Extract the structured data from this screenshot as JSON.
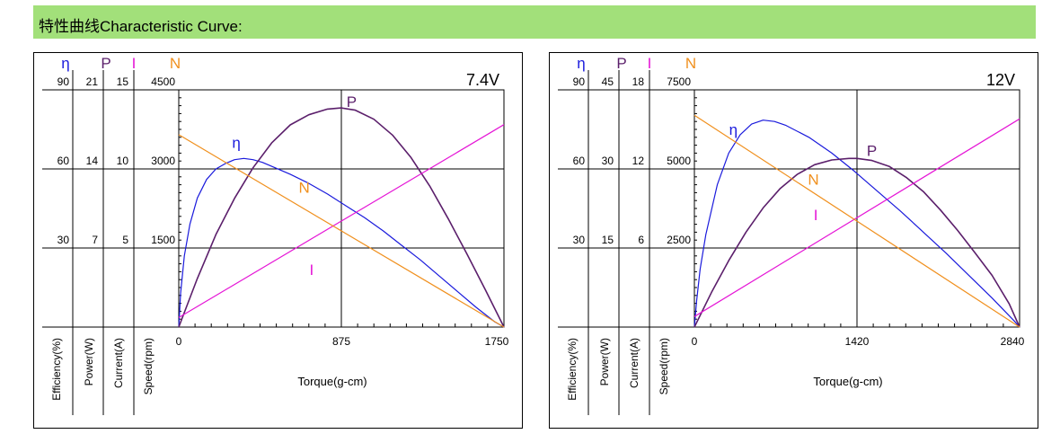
{
  "header": {
    "title": "特性曲线Characteristic Curve:"
  },
  "colors": {
    "eta": "#1a1adc",
    "P": "#5b1f6b",
    "I": "#e516d6",
    "N": "#f0901e",
    "header_bg": "#a2e07a"
  },
  "chart_data": [
    {
      "type": "line",
      "voltage_label": "7.4V",
      "xlabel": "Torque(g-cm)",
      "x_ticks": [
        "0",
        "875",
        "1750"
      ],
      "xlim": [
        0,
        1750
      ],
      "axes": [
        {
          "symbol": "η",
          "label": "Efficiency(%)",
          "ticks": [
            "90",
            "60",
            "30"
          ],
          "max": 90
        },
        {
          "symbol": "P",
          "label": "Power(W)",
          "ticks": [
            "21",
            "14",
            "7"
          ],
          "max": 21
        },
        {
          "symbol": "I",
          "label": "Current(A)",
          "ticks": [
            "15",
            "10",
            "5"
          ],
          "max": 15
        },
        {
          "symbol": "N",
          "label": "Speed(rpm)",
          "ticks": [
            "4500",
            "3000",
            "1500"
          ],
          "max": 4500
        }
      ],
      "series": [
        {
          "name": "η",
          "axis": 0,
          "x": [
            0,
            10,
            30,
            60,
            100,
            150,
            200,
            250,
            300,
            350,
            400,
            450,
            500,
            600,
            700,
            800,
            900,
            1000,
            1100,
            1200,
            1300,
            1400,
            1500,
            1600,
            1700,
            1750
          ],
          "values": [
            0,
            13,
            27,
            39,
            49,
            56,
            60,
            62,
            63.5,
            64,
            63.5,
            62.5,
            61,
            58,
            54.5,
            50.5,
            46,
            41.5,
            36.5,
            31,
            25.5,
            19.5,
            13.5,
            7.5,
            2,
            0
          ]
        },
        {
          "name": "P",
          "axis": 1,
          "x": [
            0,
            100,
            200,
            300,
            400,
            500,
            600,
            700,
            800,
            875,
            950,
            1050,
            1150,
            1250,
            1350,
            1450,
            1550,
            1650,
            1750
          ],
          "values": [
            0,
            4.3,
            8.2,
            11.4,
            14.1,
            16.3,
            17.9,
            18.8,
            19.3,
            19.4,
            19.2,
            18.4,
            17.0,
            15.0,
            12.5,
            9.6,
            6.5,
            3.3,
            0
          ]
        },
        {
          "name": "I",
          "axis": 2,
          "x": [
            0,
            1750
          ],
          "values": [
            0.6,
            12.8
          ]
        },
        {
          "name": "N",
          "axis": 3,
          "x": [
            0,
            1750
          ],
          "values": [
            3650,
            0
          ]
        }
      ],
      "curve_labels": [
        {
          "name": "η",
          "x": 310,
          "y": 68
        },
        {
          "name": "P",
          "x": 930,
          "y": 19.5
        },
        {
          "name": "N",
          "x": 675,
          "y": 2550
        },
        {
          "name": "I",
          "x": 715,
          "y": 3.3
        }
      ]
    },
    {
      "type": "line",
      "voltage_label": "12V",
      "xlabel": "Torque(g-cm)",
      "x_ticks": [
        "0",
        "1420",
        "2840"
      ],
      "xlim": [
        0,
        2840
      ],
      "axes": [
        {
          "symbol": "η",
          "label": "Efficiency(%)",
          "ticks": [
            "90",
            "60",
            "30"
          ],
          "max": 90
        },
        {
          "symbol": "P",
          "label": "Power(W)",
          "ticks": [
            "45",
            "30",
            "15"
          ],
          "max": 45
        },
        {
          "symbol": "I",
          "label": "Current(A)",
          "ticks": [
            "18",
            "12",
            "6"
          ],
          "max": 18
        },
        {
          "symbol": "N",
          "label": "Speed(rpm)",
          "ticks": [
            "7500",
            "5000",
            "2500"
          ],
          "max": 7500
        }
      ],
      "series": [
        {
          "name": "η",
          "axis": 0,
          "x": [
            0,
            20,
            50,
            100,
            200,
            300,
            400,
            500,
            600,
            700,
            800,
            1000,
            1200,
            1400,
            1600,
            1800,
            2000,
            2200,
            2400,
            2600,
            2800,
            2840
          ],
          "values": [
            0,
            10,
            22,
            35,
            54,
            66,
            73,
            77,
            78.5,
            78,
            76.5,
            72,
            66,
            59,
            51.5,
            44,
            36,
            28,
            19.5,
            11,
            2,
            0
          ]
        },
        {
          "name": "P",
          "axis": 1,
          "x": [
            0,
            150,
            300,
            450,
            600,
            750,
            900,
            1050,
            1200,
            1350,
            1420,
            1550,
            1700,
            1850,
            2000,
            2150,
            2300,
            2450,
            2600,
            2750,
            2840
          ],
          "values": [
            0,
            6.6,
            12.6,
            18.0,
            22.6,
            26.3,
            29.0,
            30.8,
            31.7,
            32.0,
            32.0,
            31.6,
            30.5,
            28.4,
            25.7,
            22.2,
            18.3,
            14.1,
            9.8,
            4.4,
            0
          ]
        },
        {
          "name": "I",
          "axis": 2,
          "x": [
            0,
            2840
          ],
          "values": [
            0.8,
            15.8
          ]
        },
        {
          "name": "N",
          "axis": 3,
          "x": [
            0,
            2840
          ],
          "values": [
            6700,
            0
          ]
        }
      ],
      "curve_labels": [
        {
          "name": "η",
          "x": 340,
          "y": 73
        },
        {
          "name": "P",
          "x": 1550,
          "y": 32.5
        },
        {
          "name": "N",
          "x": 1040,
          "y": 4500
        },
        {
          "name": "I",
          "x": 1060,
          "y": 8.1
        }
      ]
    }
  ]
}
